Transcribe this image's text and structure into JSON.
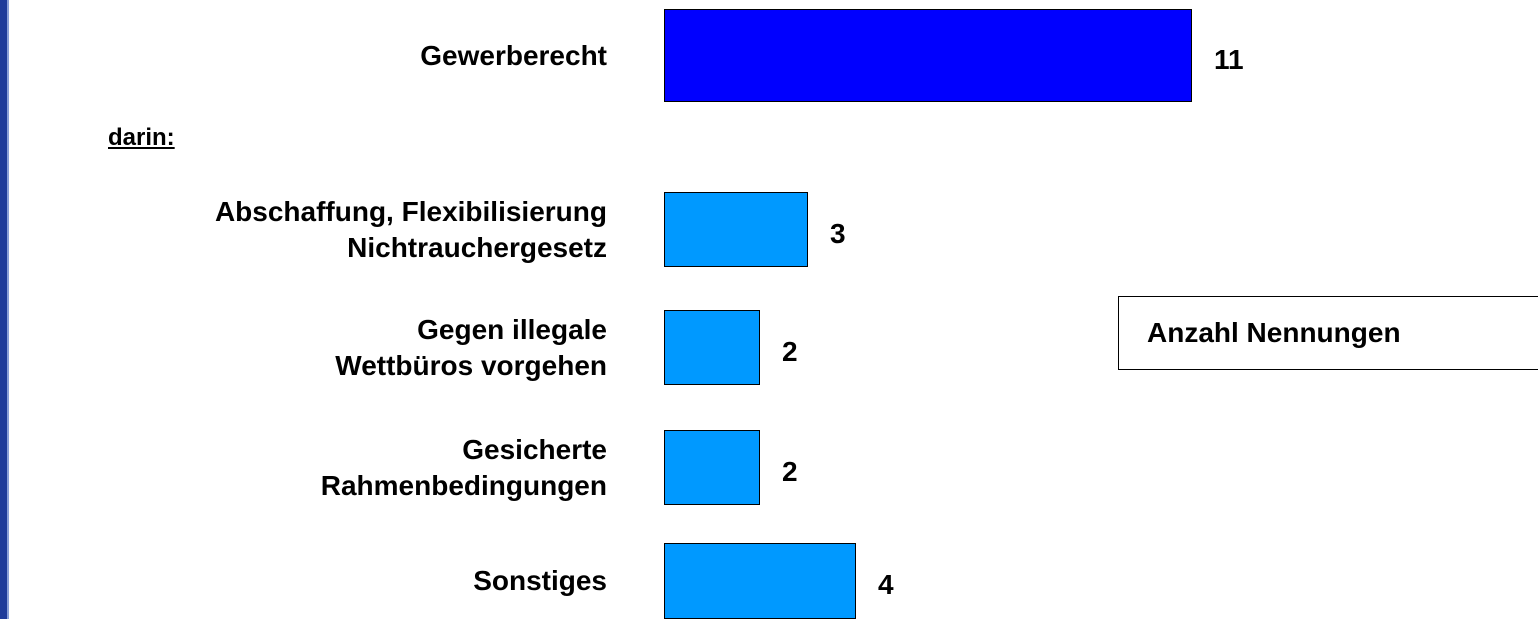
{
  "chart_data": {
    "type": "bar",
    "orientation": "horizontal",
    "categories": [
      "Gewerberecht",
      "Abschaffung, Flexibilisierung\nNichtrauchergesetz",
      "Gegen illegale\nWettbüros vorgehen",
      "Gesicherte\nRahmenbedingungen",
      "Sonstiges"
    ],
    "values": [
      11,
      3,
      2,
      2,
      4
    ],
    "colors": [
      "#0000ff",
      "#0099ff",
      "#0099ff",
      "#0099ff",
      "#0099ff"
    ],
    "annotations": [
      "darin:",
      "Anzahl Nennungen"
    ]
  }
}
